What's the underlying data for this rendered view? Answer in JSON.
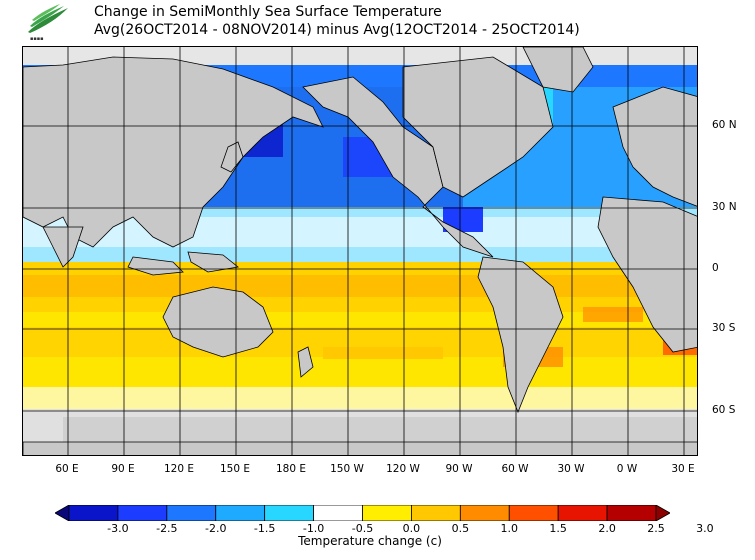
{
  "header": {
    "title_line1": "Change in SemiMonthly Sea Surface Temperature",
    "title_line2": "Avg(26OCT2014 - 08NOV2014) minus Avg(12OCT2014 - 25OCT2014)",
    "logo_icon": "noaa-logo-icon"
  },
  "map": {
    "lat_labels": [
      "60 N",
      "30 N",
      "0",
      "30 S",
      "60 S"
    ],
    "lon_labels": [
      "60 E",
      "90 E",
      "120 E",
      "150 E",
      "180 E",
      "150 W",
      "120 W",
      "90 W",
      "60 W",
      "30 W",
      "0 W",
      "30 E"
    ],
    "land_color": "#c8c8c8",
    "ice_color": "#e0e0e0"
  },
  "colorbar": {
    "title": "Temperature change  (c)",
    "tick_labels": [
      "-3.0",
      "-2.5",
      "-2.0",
      "-1.5",
      "-1.0",
      "-0.5",
      "0.0",
      "0.5",
      "1.0",
      "1.5",
      "2.0",
      "2.5",
      "3.0"
    ],
    "colors": [
      "#08087a",
      "#0a14c8",
      "#1c3cff",
      "#1e78ff",
      "#1eaaff",
      "#28d7ff",
      "#ffffff",
      "#ffee00",
      "#ffc800",
      "#ff8c00",
      "#ff5000",
      "#e61400",
      "#b40000",
      "#8c0000"
    ]
  }
}
